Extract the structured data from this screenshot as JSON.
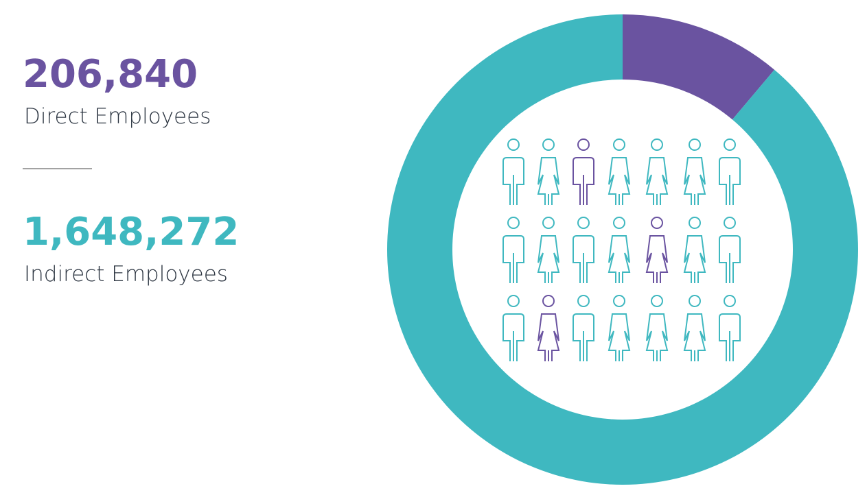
{
  "chart_data": {
    "type": "donut",
    "categories": [
      "Direct Employees",
      "Indirect Employees"
    ],
    "values": [
      206840,
      1648272
    ],
    "value_labels": [
      "206,840",
      "1,648,272"
    ],
    "colors": [
      "#6a53a0",
      "#3fb8c0"
    ]
  }
}
